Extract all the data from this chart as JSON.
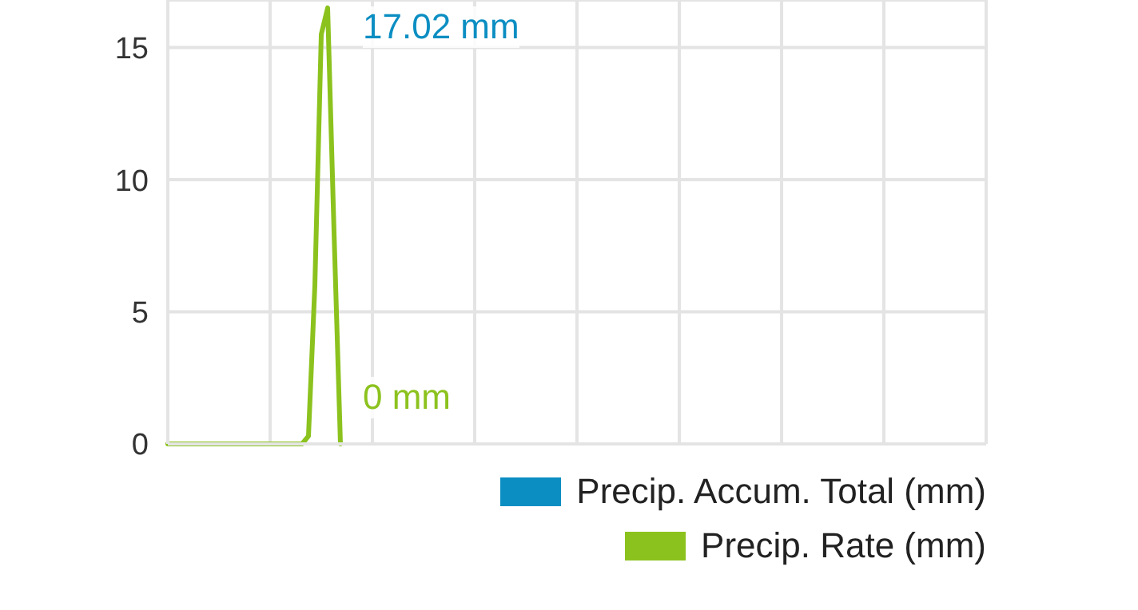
{
  "chart_data": {
    "type": "line",
    "categories": [
      null,
      null,
      null,
      null,
      null,
      null,
      null,
      null,
      null,
      null,
      null,
      null,
      null,
      null,
      null,
      null,
      null,
      null,
      null,
      null,
      null,
      null,
      null,
      null,
      null,
      null,
      null,
      null,
      null,
      null,
      null,
      null,
      null,
      null,
      null,
      null,
      null,
      null,
      null,
      null,
      null,
      null,
      null,
      null,
      null,
      null,
      null,
      null,
      null,
      null,
      null,
      null,
      null,
      null,
      null,
      null,
      null,
      null,
      null,
      null,
      null,
      null,
      null,
      null,
      null,
      null,
      null,
      null,
      null,
      null,
      null,
      null,
      null,
      null,
      null,
      null,
      null,
      null,
      null,
      null,
      null,
      null,
      null,
      null,
      null,
      null,
      null,
      null,
      null,
      null,
      null,
      null,
      null,
      null,
      null,
      null,
      null,
      null,
      null,
      null,
      null,
      null,
      null,
      null,
      null,
      null,
      null,
      null,
      null,
      null,
      null,
      null,
      null,
      null,
      null,
      null,
      null,
      null,
      null,
      null,
      null,
      null,
      null,
      null,
      null,
      null,
      null,
      null,
      null
    ],
    "series": [
      {
        "name": "Precip. Accum. Total (mm)",
        "color": "#0b8ec2",
        "values": [
          null,
          null,
          null,
          null,
          null,
          null,
          null,
          null,
          null,
          null,
          null,
          null,
          null,
          null,
          null,
          null,
          null,
          null,
          null,
          null,
          null,
          null,
          null,
          null,
          null,
          null,
          null,
          null,
          null,
          null,
          null,
          null,
          null,
          null,
          null,
          null,
          null,
          null,
          null,
          null,
          null,
          null,
          null,
          null,
          null,
          null,
          null,
          null,
          null,
          null,
          null,
          null,
          null,
          null,
          null,
          null,
          null,
          null,
          null,
          null,
          null,
          null,
          null,
          null,
          null,
          null,
          null,
          null,
          null,
          null,
          null,
          null,
          null,
          null,
          null,
          null,
          null,
          null,
          null,
          null,
          null,
          null,
          null,
          null,
          null,
          null,
          null,
          null,
          null,
          null,
          null,
          null,
          null,
          null,
          null,
          null,
          null,
          null,
          null,
          null,
          null,
          null,
          null,
          null,
          null,
          null,
          null,
          null,
          null,
          null,
          null,
          null,
          null,
          null,
          null,
          null,
          null,
          null,
          null,
          null,
          null,
          null,
          null,
          null,
          null,
          null,
          null,
          null,
          null
        ]
      },
      {
        "name": "Precip. Rate (mm)",
        "color": "#8cc21e",
        "values": [
          0,
          0,
          0,
          0,
          0,
          0,
          0,
          0,
          0,
          0,
          0,
          0,
          0,
          0,
          0,
          0,
          0,
          0,
          0,
          0,
          0,
          0,
          0.3,
          6,
          15.5,
          16.5,
          8,
          0,
          null,
          null,
          null,
          null,
          null,
          null,
          null,
          null,
          null,
          null,
          null,
          null,
          null,
          null,
          null,
          null,
          null,
          null,
          null,
          null,
          null,
          null,
          null,
          null,
          null,
          null,
          null,
          null,
          null,
          null,
          null,
          null,
          null,
          null,
          null,
          null,
          null,
          null,
          null,
          null,
          null,
          null,
          null,
          null,
          null,
          null,
          null,
          null,
          null,
          null,
          null,
          null,
          null,
          null,
          null,
          null,
          null,
          null,
          null,
          null,
          null,
          null,
          null,
          null,
          null,
          null,
          null,
          null,
          null,
          null,
          null,
          null,
          null,
          null,
          null,
          null,
          null,
          null,
          null,
          null,
          null,
          null,
          null,
          null,
          null,
          null,
          null,
          null,
          null,
          null,
          null,
          null,
          null,
          null,
          null,
          null,
          null,
          null,
          null,
          null,
          null
        ]
      }
    ],
    "ylim": [
      0,
      16.8
    ],
    "yticks": [
      0,
      5,
      10,
      15
    ],
    "tick_labels": "y",
    "grid": true,
    "legend": "bottom right",
    "marker": "none",
    "annotations": [
      "17.02 mm",
      "0 mm"
    ]
  }
}
